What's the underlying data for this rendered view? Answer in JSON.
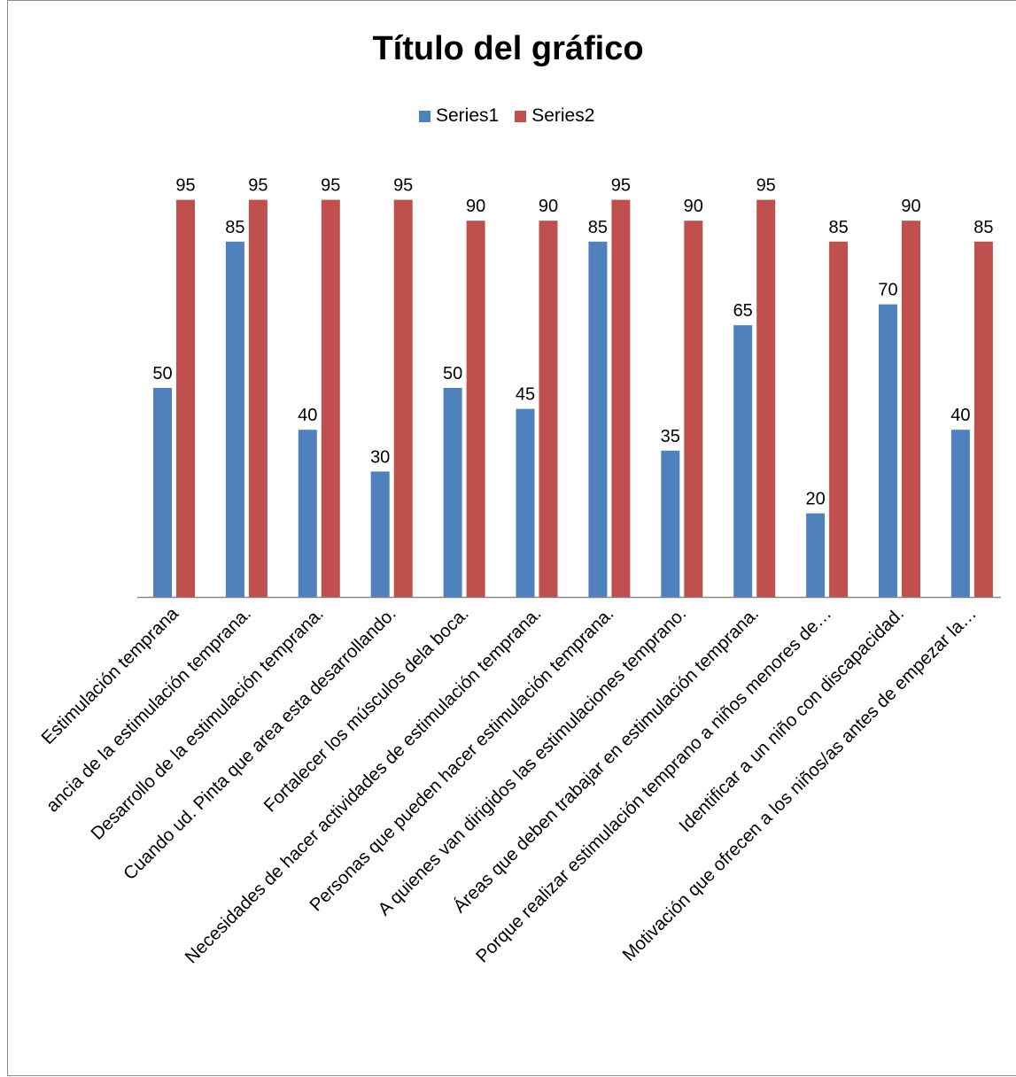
{
  "chart_data": {
    "type": "bar",
    "title": "Título del gráfico",
    "xlabel": "",
    "ylabel": "",
    "ylim": [
      0,
      100
    ],
    "grid": false,
    "legend_position": "top",
    "categories": [
      "Estimulación temprana",
      "ancia de la estimulación temprana.",
      "Desarrollo de la estimulación temprana.",
      "Cuando ud. Pinta que area esta desarrollando.",
      "Fortalecer los músculos dela boca.",
      "Necesidades de hacer actividades de estimulación temprana.",
      "Personas que pueden  hacer estimulación temprana.",
      "A quienes van dirigidos las estimulaciones temprano.",
      "Áreas que deben trabajar en estimulación temprana.",
      "Porque realizar estimulación temprano a niños menores de…",
      "Identificar a un niño con discapacidad.",
      "Motivación que ofrecen a los niños/as antes de empezar la…"
    ],
    "series": [
      {
        "name": "Series1",
        "color": "#4f81bd",
        "values": [
          50,
          85,
          40,
          30,
          50,
          45,
          85,
          35,
          65,
          20,
          70,
          40
        ]
      },
      {
        "name": "Series2",
        "color": "#c0504d",
        "values": [
          95,
          95,
          95,
          95,
          90,
          90,
          95,
          90,
          95,
          85,
          90,
          85
        ]
      }
    ]
  }
}
